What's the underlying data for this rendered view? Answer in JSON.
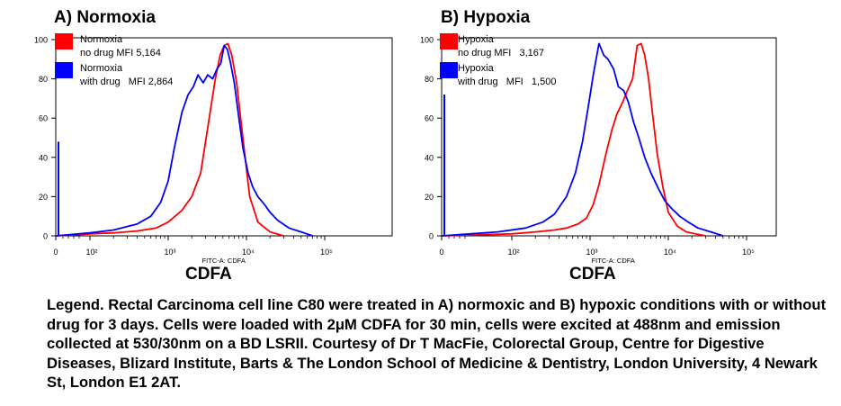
{
  "figure": {
    "legend_text": "Legend. Rectal Carcinoma cell line C80 were treated in A) normoxic and B) hypoxic conditions with or without drug for 3 days. Cells were loaded with 2μM CDFA for 30 min, cells were excited at 488nm  and emission collected at 530/30nm on a BD LSRII. Courtesy of Dr T MacFie, Colorectal Group, Centre for Digestive Diseases, Blizard Institute, Barts & The London School of Medicine & Dentistry, London University, 4 Newark St, London E1 2AT."
  },
  "chart_data": [
    {
      "type": "line",
      "title": "A) Normoxia",
      "xlabel": "CDFA",
      "x_axis_caption": "FITC-A: CDFA",
      "ylabel": "",
      "ylim": [
        0,
        100
      ],
      "y_ticks": [
        "0",
        "20",
        "40",
        "60",
        "80",
        "100"
      ],
      "x_ticks": [
        {
          "value": 0,
          "label": "0"
        },
        {
          "value": 100,
          "label": "10²"
        },
        {
          "value": 1000,
          "label": "10³"
        },
        {
          "value": 10000,
          "label": "10⁴"
        },
        {
          "value": 100000,
          "label": "10⁵"
        }
      ],
      "x_scale": "biexponential",
      "legend_position": "top-left",
      "series": [
        {
          "name": "Normoxia no drug MFI 5,164",
          "color": "#ff0000",
          "x": [
            0,
            100,
            200,
            400,
            700,
            1000,
            1500,
            2000,
            2600,
            3200,
            4000,
            4600,
            5200,
            5800,
            6500,
            7500,
            9000,
            11000,
            14000,
            20000,
            30000
          ],
          "y": [
            0,
            1,
            1.5,
            2.5,
            4,
            7,
            13,
            20,
            32,
            55,
            80,
            92,
            97,
            98,
            92,
            78,
            50,
            20,
            7,
            2,
            0
          ]
        },
        {
          "name": "Normoxia with drug   MFI 2,864",
          "color": "#0000ff",
          "x": [
            0,
            100,
            200,
            400,
            600,
            800,
            1000,
            1200,
            1500,
            1800,
            2100,
            2400,
            2800,
            3200,
            3700,
            4200,
            4700,
            5200,
            5700,
            6200,
            7000,
            8000,
            9000,
            10500,
            12000,
            14000,
            17000,
            20000,
            25000,
            35000,
            50000,
            70000
          ],
          "y": [
            0,
            1.5,
            3,
            6,
            10,
            17,
            28,
            45,
            63,
            72,
            76,
            82,
            78,
            82,
            80,
            85,
            88,
            97,
            95,
            89,
            78,
            60,
            45,
            32,
            25,
            20,
            16,
            12,
            8,
            4,
            2,
            0
          ]
        }
      ]
    },
    {
      "type": "line",
      "title": "B) Hypoxia",
      "xlabel": "CDFA",
      "x_axis_caption": "FITC-A: CDFA",
      "ylabel": "",
      "ylim": [
        0,
        100
      ],
      "y_ticks": [
        "0",
        "20",
        "40",
        "60",
        "80",
        "100"
      ],
      "x_ticks": [
        {
          "value": 0,
          "label": "0"
        },
        {
          "value": 100,
          "label": "10²"
        },
        {
          "value": 1000,
          "label": "10³"
        },
        {
          "value": 10000,
          "label": "10⁴"
        },
        {
          "value": 100000,
          "label": "10⁵"
        }
      ],
      "x_scale": "biexponential",
      "legend_position": "top-left",
      "series": [
        {
          "name": "Hypoxia no drug MFI  3,167",
          "color": "#ff0000",
          "x": [
            0,
            100,
            200,
            350,
            500,
            700,
            900,
            1100,
            1300,
            1600,
            1900,
            2200,
            2600,
            3000,
            3500,
            4000,
            4500,
            5000,
            5600,
            6300,
            7200,
            8500,
            10000,
            13000,
            17000,
            22000,
            30000
          ],
          "y": [
            0,
            1,
            2,
            3,
            4,
            6,
            9,
            16,
            26,
            42,
            54,
            62,
            68,
            74,
            80,
            97,
            98,
            92,
            80,
            62,
            42,
            25,
            12,
            5,
            2,
            1,
            0
          ]
        },
        {
          "name": "Hypoxia with drug   MFI  1,500",
          "color": "#0000ff",
          "x": [
            0,
            80,
            150,
            250,
            350,
            500,
            650,
            800,
            950,
            1100,
            1300,
            1500,
            1700,
            2000,
            2300,
            2700,
            3100,
            3600,
            4200,
            5000,
            6000,
            7500,
            9000,
            11000,
            14000,
            18000,
            24000,
            35000,
            50000
          ],
          "y": [
            0,
            2,
            4,
            7,
            11,
            20,
            32,
            48,
            66,
            82,
            98,
            92,
            90,
            85,
            76,
            74,
            68,
            58,
            50,
            40,
            32,
            24,
            18,
            14,
            10,
            7,
            4,
            2,
            0
          ]
        }
      ]
    }
  ]
}
